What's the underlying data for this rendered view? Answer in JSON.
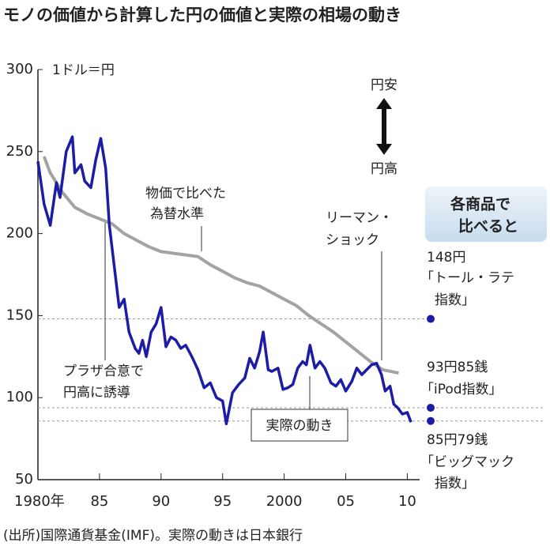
{
  "chart_data": {
    "type": "line",
    "title": "モノの価値から計算した円の価値と実際の相場の動き",
    "y_unit": "1ドル＝円",
    "arrow_labels": [
      "円安",
      "円高"
    ],
    "xlim": [
      1980,
      2011
    ],
    "xticks": [
      {
        "value": 1980,
        "label": "1980年"
      },
      {
        "value": 1985,
        "label": "85"
      },
      {
        "value": 1990,
        "label": "90"
      },
      {
        "value": 1995,
        "label": "95"
      },
      2000,
      {
        "value": 2005,
        "label": "05"
      },
      {
        "value": 2010,
        "label": "10"
      }
    ],
    "ylim": [
      50,
      300
    ],
    "yticks": [
      50,
      100,
      150,
      200,
      250,
      300
    ],
    "series": [
      {
        "name": [
          "物価で比べた",
          "為替水準"
        ],
        "color": "#a3a3a3",
        "x": [
          1980.5,
          1981,
          1982,
          1983,
          1984,
          1985,
          1986,
          1987,
          1988,
          1989,
          1990,
          1991,
          1992,
          1993,
          1994,
          1995,
          1996,
          1997,
          1998,
          1999,
          2000,
          2001,
          2002,
          2003,
          2004,
          2005,
          2006,
          2007,
          2008,
          2009.3
        ],
        "values": [
          247,
          237,
          225,
          216,
          212,
          209,
          206,
          200,
          196,
          192,
          189,
          188,
          187,
          186,
          181,
          177,
          173,
          170,
          168,
          164,
          160,
          156,
          150,
          145,
          140,
          134,
          128,
          122,
          117,
          115
        ]
      },
      {
        "name": [
          "実際の動き"
        ],
        "color": "#1c1ca6",
        "x": [
          1980,
          1980.5,
          1981,
          1981.5,
          1981.8,
          1982.3,
          1982.8,
          1983,
          1983.5,
          1983.8,
          1984.3,
          1984.7,
          1985.1,
          1985.5,
          1985.8,
          1986.2,
          1986.6,
          1987,
          1987.4,
          1987.9,
          1988.2,
          1988.5,
          1988.8,
          1989.2,
          1989.6,
          1990,
          1990.4,
          1990.8,
          1991.2,
          1991.6,
          1992,
          1992.5,
          1993,
          1993.5,
          1994,
          1994.5,
          1995,
          1995.3,
          1995.8,
          1996.3,
          1996.8,
          1997.2,
          1997.6,
          1998,
          1998.3,
          1998.7,
          1999,
          1999.5,
          1999.9,
          2000.3,
          2000.7,
          2001.1,
          2001.5,
          2001.8,
          2002.1,
          2002.5,
          2002.9,
          2003.3,
          2003.8,
          2004.2,
          2004.6,
          2005,
          2005.5,
          2005.9,
          2006.3,
          2006.7,
          2007.1,
          2007.5,
          2007.9,
          2008.2,
          2008.6,
          2008.9,
          2009.2,
          2009.6,
          2010,
          2010.3
        ],
        "values": [
          244,
          218,
          205,
          231,
          222,
          250,
          259,
          237,
          242,
          232,
          228,
          245,
          258,
          240,
          205,
          180,
          155,
          160,
          140,
          130,
          127,
          135,
          125,
          140,
          145,
          155,
          131,
          137,
          135,
          130,
          132,
          125,
          117,
          106,
          109,
          100,
          98,
          84,
          103,
          108,
          112,
          124,
          118,
          128,
          140,
          117,
          116,
          118,
          105,
          106,
          108,
          118,
          122,
          120,
          132,
          118,
          122,
          118,
          109,
          107,
          111,
          104,
          110,
          118,
          114,
          117,
          120,
          121,
          114,
          104,
          107,
          96,
          94,
          90,
          91,
          85
        ]
      }
    ],
    "annotations": [
      [
        "プラザ合意で",
        "円高に誘導"
      ],
      [
        "リーマン・",
        "ショック"
      ]
    ],
    "comparison_title": [
      "各商品で",
      "比べると"
    ],
    "reference_lines": [
      {
        "value": 148,
        "value_label": "148円",
        "name": [
          "「トール・ラテ",
          "指数」"
        ]
      },
      {
        "value": 93.85,
        "value_label": "93円85銭",
        "name": [
          "「iPod指数」"
        ]
      },
      {
        "value": 85.79,
        "value_label": "85円79銭",
        "name": [
          "「ビッグマック",
          "指数」"
        ]
      }
    ],
    "source": "(出所)国際通貨基金(IMF)。実際の動きは日本銀行"
  }
}
